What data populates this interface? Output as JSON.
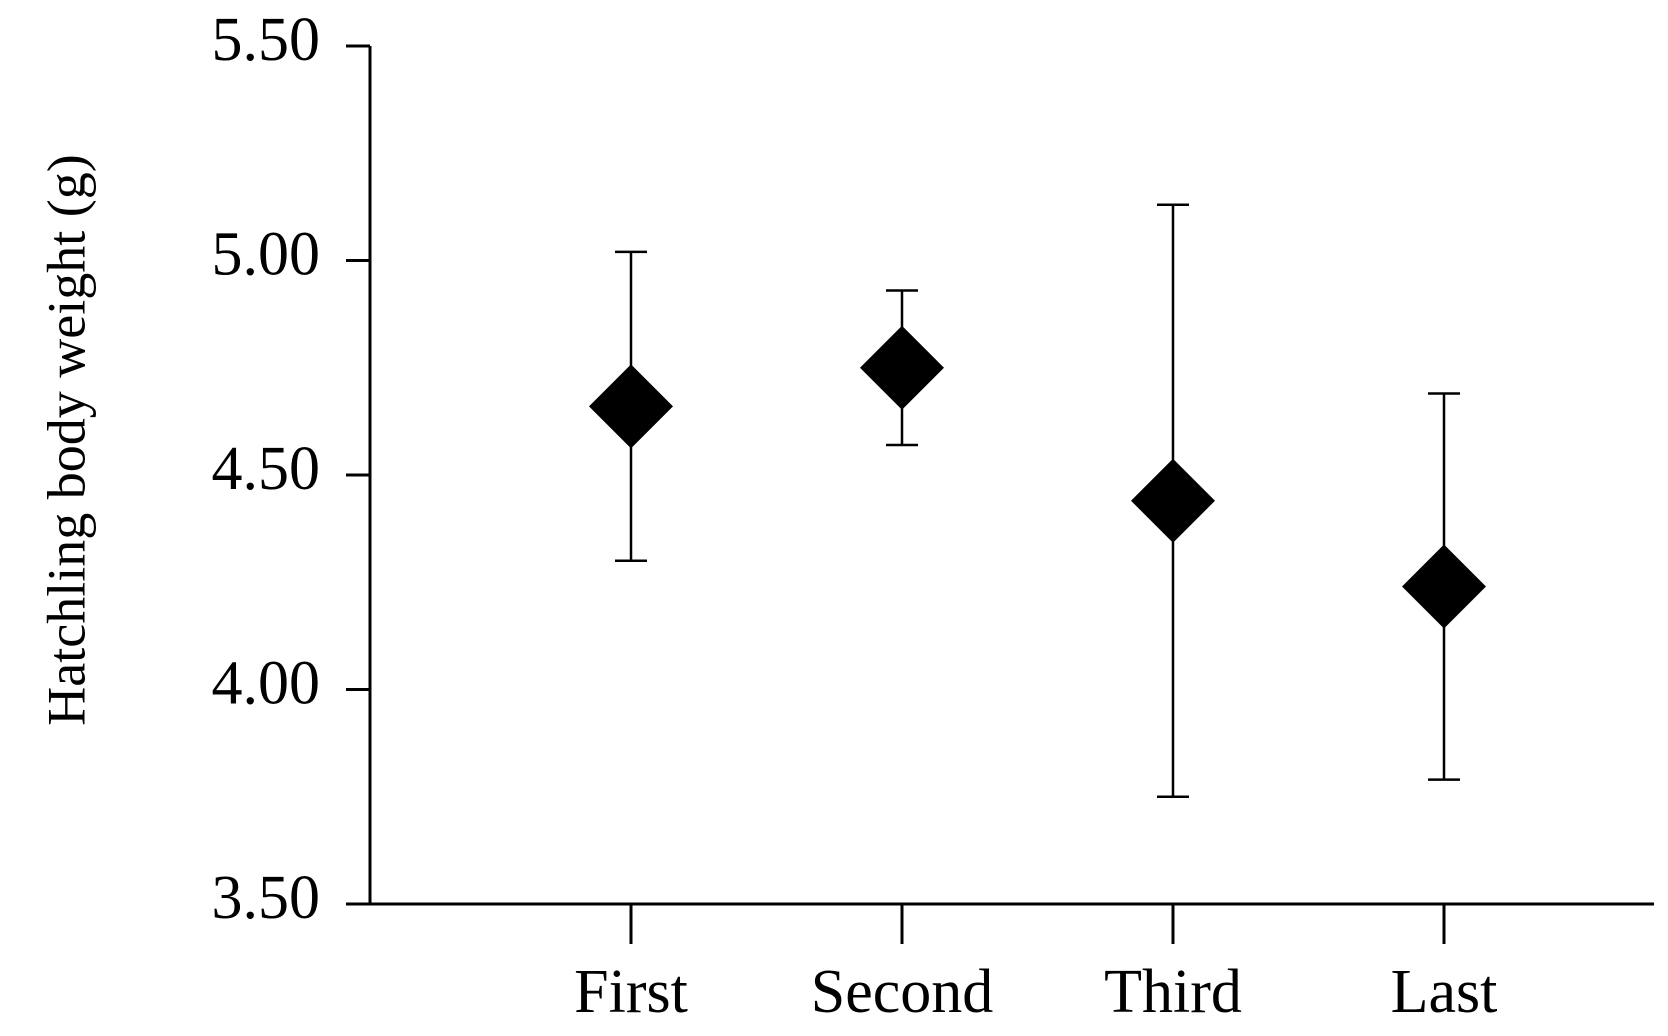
{
  "chart_data": {
    "type": "errorbar",
    "y_label": "Hatchling body weight (g)",
    "categories": [
      "First",
      "Second",
      "Third",
      "Last"
    ],
    "values": [
      4.66,
      4.75,
      4.44,
      4.24
    ],
    "errors": [
      0.36,
      0.18,
      0.69,
      0.45
    ],
    "color": "#000000",
    "ylim": [
      3.5,
      5.5
    ],
    "yticks": [
      {
        "value": 3.5,
        "label": "3.50"
      },
      {
        "value": 4,
        "label": "4.00"
      },
      {
        "value": 4.5,
        "label": "4.50"
      },
      {
        "value": 5,
        "label": "5.00"
      },
      {
        "value": 5.5,
        "label": "5.50"
      }
    ],
    "grid": false
  }
}
